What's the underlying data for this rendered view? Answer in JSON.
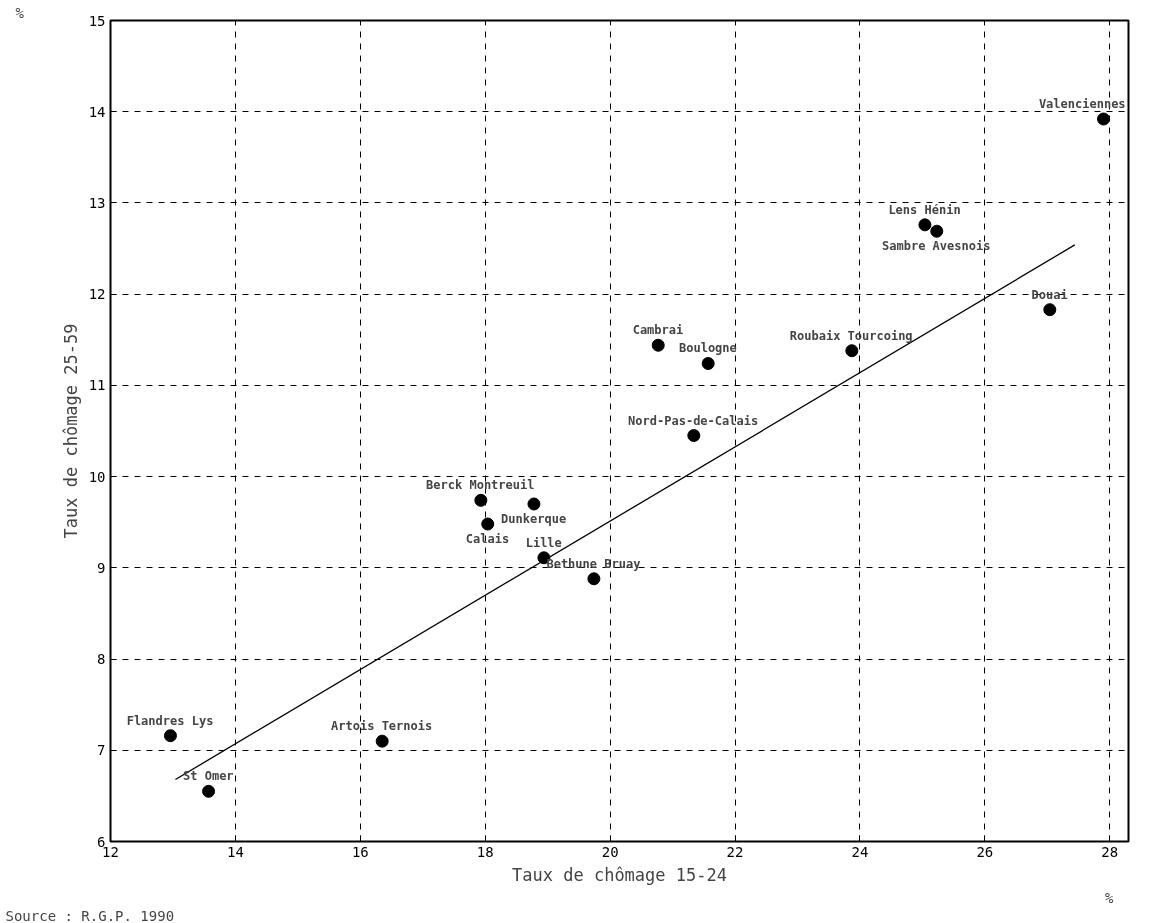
{
  "chart_data": {
    "type": "scatter",
    "xlabel": "Taux de chômage 15-24",
    "ylabel": "Taux de chômage 25-59",
    "xlim": [
      12,
      28.3
    ],
    "ylim": [
      6,
      15
    ],
    "xticks": [
      12,
      14,
      16,
      18,
      20,
      22,
      24,
      26,
      28
    ],
    "yticks": [
      6,
      7,
      8,
      9,
      10,
      11,
      12,
      13,
      14,
      15
    ],
    "grid": true,
    "marker": "circle",
    "series": [
      {
        "type": "scatter",
        "color": "#000000",
        "x": [
          27.9,
          25.04,
          25.23,
          27.04,
          23.87,
          20.77,
          21.57,
          21.34,
          17.93,
          18.78,
          18.04,
          18.94,
          19.74,
          12.96,
          13.57,
          16.35
        ],
        "values": [
          13.92,
          12.76,
          12.69,
          11.83,
          11.38,
          11.44,
          11.24,
          10.45,
          9.74,
          9.7,
          9.48,
          9.11,
          8.88,
          7.16,
          6.55,
          7.1
        ]
      },
      {
        "type": "line",
        "marker": "none",
        "color": "#000000",
        "x": [
          13.04,
          27.44
        ],
        "values": [
          6.68,
          12.54
        ]
      }
    ],
    "annotations": [
      {
        "text": "Valenciennes",
        "x": 27.9,
        "y": 13.92
      },
      {
        "text": "Lens Hénin",
        "x": 25.04,
        "y": 12.76
      },
      {
        "text": "Sambre Avesnois",
        "x": 25.23,
        "y": 12.69
      },
      {
        "text": "Douai",
        "x": 27.04,
        "y": 11.83
      },
      {
        "text": "Roubaix Tourcoing",
        "x": 23.87,
        "y": 11.38
      },
      {
        "text": "Cambrai",
        "x": 20.77,
        "y": 11.44
      },
      {
        "text": "Boulogne",
        "x": 21.57,
        "y": 11.24
      },
      {
        "text": "Nord-Pas-de-Calais",
        "x": 21.34,
        "y": 10.45
      },
      {
        "text": "Berck Montreuil",
        "x": 17.93,
        "y": 9.74
      },
      {
        "text": "Dunkerque",
        "x": 18.78,
        "y": 9.7
      },
      {
        "text": "Calais",
        "x": 18.04,
        "y": 9.48
      },
      {
        "text": "Lille",
        "x": 18.94,
        "y": 9.11
      },
      {
        "text": "Bethune Bruay",
        "x": 19.74,
        "y": 8.88
      },
      {
        "text": "Flandres Lys",
        "x": 12.96,
        "y": 7.16
      },
      {
        "text": "St Omer",
        "x": 13.57,
        "y": 6.55
      },
      {
        "text": "Artois Ternois",
        "x": 16.35,
        "y": 7.1
      },
      "%",
      "%",
      "Source : R.G.P. 1990"
    ]
  }
}
